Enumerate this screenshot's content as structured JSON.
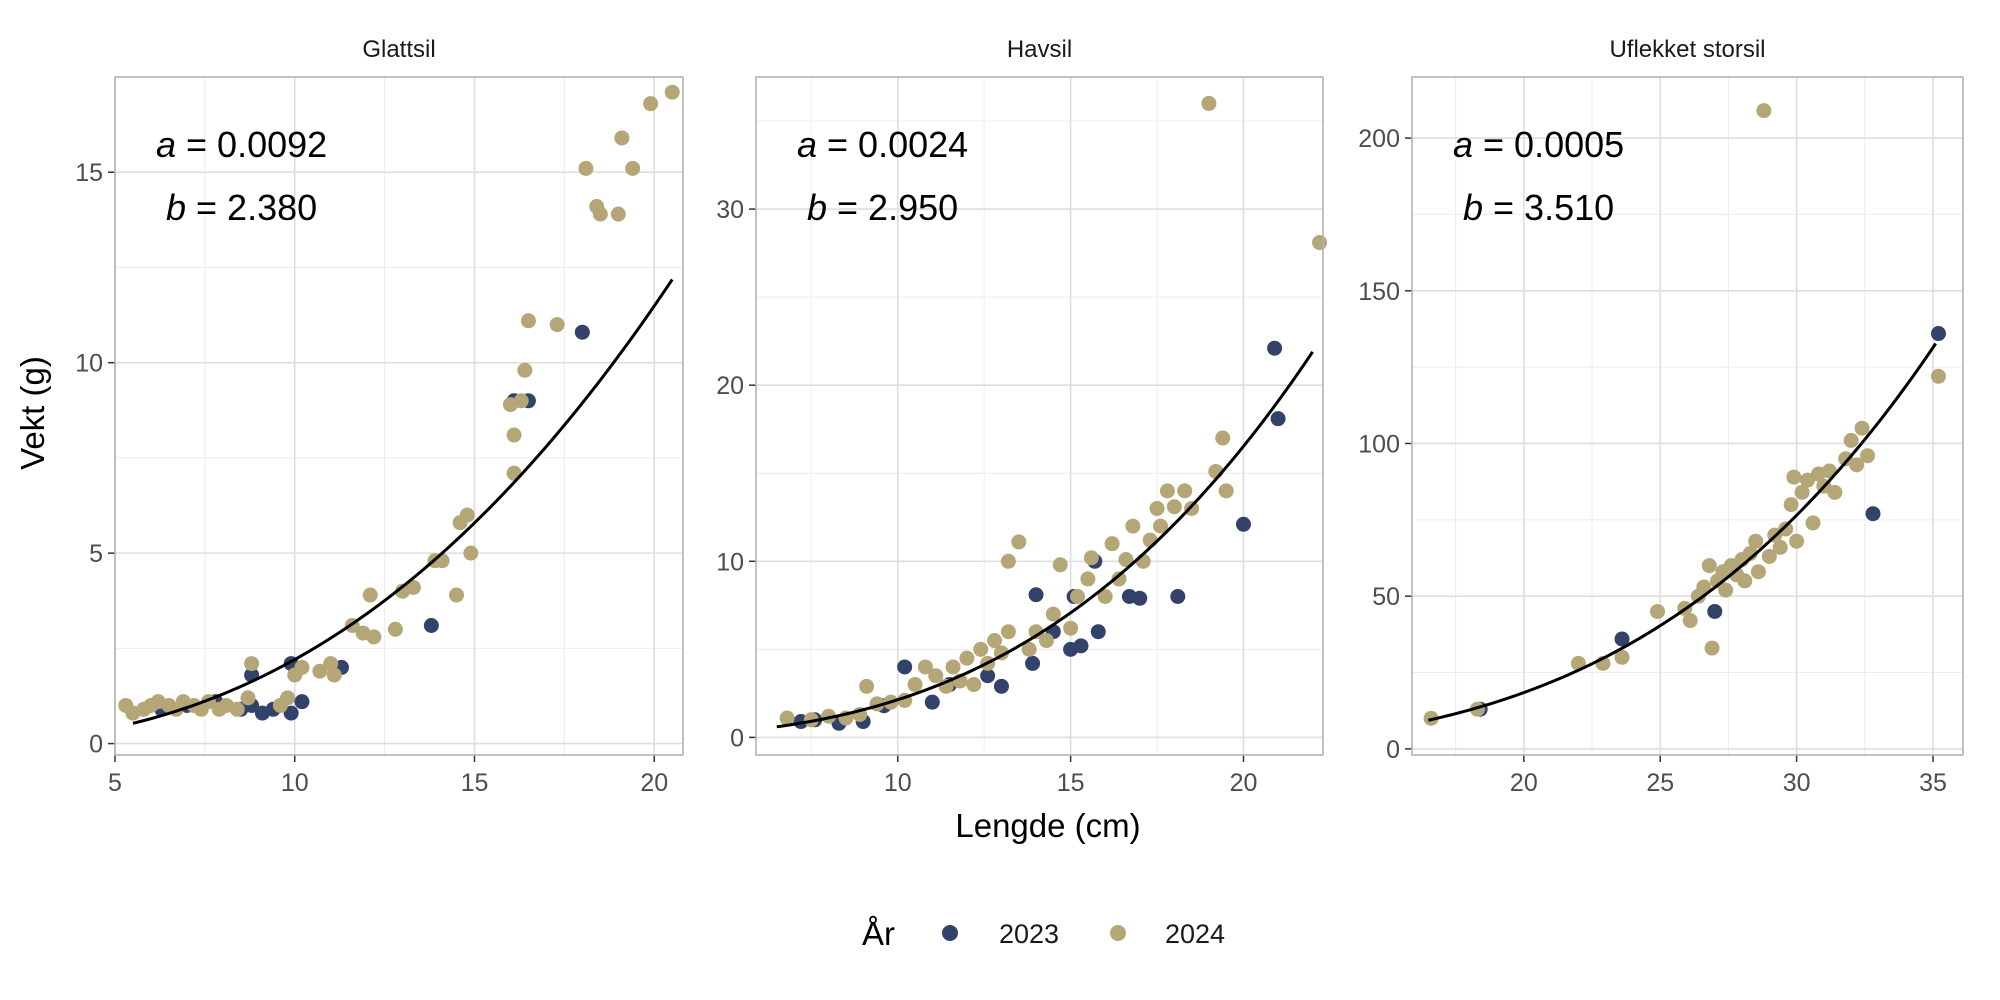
{
  "chart_data": {
    "type": "scatter",
    "xlabel": "Lengde (cm)",
    "ylabel": "Vekt (g)",
    "legend": {
      "title": "År",
      "position": "bottom"
    },
    "series_styles": [
      {
        "name": "2023",
        "color": "#33426b"
      },
      {
        "name": "2024",
        "color": "#b5a677"
      }
    ],
    "fit_color": "#000000",
    "panels": [
      {
        "title": "Glattsil",
        "xlim": [
          5,
          20.8
        ],
        "ylim": [
          -0.3,
          17.5
        ],
        "xticks": [
          5,
          10,
          15,
          20
        ],
        "yticks": [
          0,
          5,
          10,
          15
        ],
        "a": 0.0092,
        "b": 2.38,
        "a_label": "a",
        "a_text": "= 0.0092",
        "b_label": "b",
        "b_text": "= 2.380",
        "fit_range": [
          5.5,
          20.5
        ],
        "points_2023": [
          [
            6.3,
            0.9
          ],
          [
            7.0,
            1.0
          ],
          [
            7.8,
            1.1
          ],
          [
            8.5,
            0.9
          ],
          [
            8.8,
            1.0
          ],
          [
            8.8,
            1.8
          ],
          [
            9.1,
            0.8
          ],
          [
            9.4,
            0.9
          ],
          [
            9.9,
            0.8
          ],
          [
            9.9,
            2.1
          ],
          [
            10.2,
            1.1
          ],
          [
            11.3,
            2.0
          ],
          [
            13.8,
            3.1
          ],
          [
            16.1,
            9.0
          ],
          [
            16.5,
            9.0
          ],
          [
            18.0,
            10.8
          ]
        ],
        "points_2024": [
          [
            5.3,
            1.0
          ],
          [
            5.5,
            0.8
          ],
          [
            5.8,
            0.9
          ],
          [
            6.0,
            1.0
          ],
          [
            6.2,
            1.1
          ],
          [
            6.5,
            1.0
          ],
          [
            6.7,
            0.9
          ],
          [
            6.9,
            1.1
          ],
          [
            7.2,
            1.0
          ],
          [
            7.4,
            0.9
          ],
          [
            7.6,
            1.1
          ],
          [
            7.9,
            0.9
          ],
          [
            8.1,
            1.0
          ],
          [
            8.4,
            0.9
          ],
          [
            8.7,
            1.2
          ],
          [
            8.8,
            2.1
          ],
          [
            9.6,
            1.0
          ],
          [
            9.8,
            1.2
          ],
          [
            10.0,
            1.8
          ],
          [
            10.2,
            2.0
          ],
          [
            10.7,
            1.9
          ],
          [
            11.0,
            2.1
          ],
          [
            11.1,
            1.8
          ],
          [
            11.6,
            3.1
          ],
          [
            11.9,
            2.9
          ],
          [
            12.1,
            3.9
          ],
          [
            12.2,
            2.8
          ],
          [
            12.8,
            3.0
          ],
          [
            13.0,
            4.0
          ],
          [
            13.3,
            4.1
          ],
          [
            13.9,
            4.8
          ],
          [
            14.1,
            4.8
          ],
          [
            14.5,
            3.9
          ],
          [
            14.6,
            5.8
          ],
          [
            14.8,
            6.0
          ],
          [
            14.9,
            5.0
          ],
          [
            16.0,
            8.9
          ],
          [
            16.1,
            8.1
          ],
          [
            16.1,
            7.1
          ],
          [
            16.3,
            9.0
          ],
          [
            16.4,
            9.8
          ],
          [
            16.5,
            11.1
          ],
          [
            17.3,
            11.0
          ],
          [
            18.1,
            15.1
          ],
          [
            18.4,
            14.1
          ],
          [
            18.5,
            13.9
          ],
          [
            19.0,
            13.9
          ],
          [
            19.1,
            15.9
          ],
          [
            19.4,
            15.1
          ],
          [
            19.9,
            16.8
          ],
          [
            20.5,
            17.1
          ]
        ]
      },
      {
        "title": "Havsil",
        "xlim": [
          5.9,
          22.3
        ],
        "ylim": [
          -1,
          37.5
        ],
        "xticks": [
          10,
          15,
          20
        ],
        "yticks": [
          0,
          10,
          20,
          30
        ],
        "a": 0.0024,
        "b": 2.95,
        "a_label": "a",
        "a_text": "= 0.0024",
        "b_label": "b",
        "b_text": "= 2.950",
        "fit_range": [
          6.5,
          22.0
        ],
        "points_2023": [
          [
            7.2,
            0.9
          ],
          [
            7.6,
            1.0
          ],
          [
            8.3,
            0.8
          ],
          [
            9.0,
            0.9
          ],
          [
            9.6,
            1.8
          ],
          [
            10.2,
            4.0
          ],
          [
            11.0,
            2.0
          ],
          [
            11.5,
            3.0
          ],
          [
            12.6,
            3.5
          ],
          [
            13.0,
            2.9
          ],
          [
            13.9,
            4.2
          ],
          [
            14.0,
            8.1
          ],
          [
            14.5,
            6.0
          ],
          [
            15.0,
            5.0
          ],
          [
            15.1,
            8.0
          ],
          [
            15.3,
            5.2
          ],
          [
            15.7,
            10.0
          ],
          [
            15.8,
            6.0
          ],
          [
            16.7,
            8.0
          ],
          [
            17.0,
            7.9
          ],
          [
            18.1,
            8.0
          ],
          [
            20.0,
            12.1
          ],
          [
            20.9,
            22.1
          ],
          [
            21.0,
            18.1
          ]
        ],
        "points_2024": [
          [
            6.8,
            1.1
          ],
          [
            7.5,
            1.0
          ],
          [
            8.0,
            1.2
          ],
          [
            8.5,
            1.1
          ],
          [
            8.9,
            1.3
          ],
          [
            9.1,
            2.9
          ],
          [
            9.4,
            1.9
          ],
          [
            9.8,
            2.0
          ],
          [
            10.2,
            2.1
          ],
          [
            10.5,
            3.0
          ],
          [
            10.8,
            4.0
          ],
          [
            11.1,
            3.5
          ],
          [
            11.4,
            2.9
          ],
          [
            11.6,
            4.0
          ],
          [
            11.8,
            3.2
          ],
          [
            12.0,
            4.5
          ],
          [
            12.2,
            3.0
          ],
          [
            12.4,
            5.0
          ],
          [
            12.6,
            4.2
          ],
          [
            12.8,
            5.5
          ],
          [
            13.0,
            4.8
          ],
          [
            13.2,
            6.0
          ],
          [
            13.2,
            10.0
          ],
          [
            13.5,
            11.1
          ],
          [
            13.8,
            5.0
          ],
          [
            14.0,
            6.0
          ],
          [
            14.3,
            5.5
          ],
          [
            14.5,
            7.0
          ],
          [
            14.7,
            9.8
          ],
          [
            15.0,
            6.2
          ],
          [
            15.2,
            8.0
          ],
          [
            15.5,
            9.0
          ],
          [
            15.6,
            10.2
          ],
          [
            16.0,
            8.0
          ],
          [
            16.2,
            11.0
          ],
          [
            16.4,
            9.0
          ],
          [
            16.6,
            10.1
          ],
          [
            16.8,
            12.0
          ],
          [
            17.1,
            10.0
          ],
          [
            17.3,
            11.2
          ],
          [
            17.5,
            13.0
          ],
          [
            17.6,
            12.0
          ],
          [
            17.8,
            14.0
          ],
          [
            18.0,
            13.1
          ],
          [
            18.3,
            14.0
          ],
          [
            18.5,
            13.0
          ],
          [
            19.2,
            15.1
          ],
          [
            19.4,
            17.0
          ],
          [
            19.5,
            14.0
          ],
          [
            19.0,
            36.0
          ],
          [
            22.2,
            28.1
          ]
        ]
      },
      {
        "title": "Uflekket storsil",
        "xlim": [
          15.9,
          36.1
        ],
        "ylim": [
          -2,
          220
        ],
        "xticks": [
          20,
          25,
          30,
          35
        ],
        "yticks": [
          0,
          50,
          100,
          150,
          200
        ],
        "a": 0.0005,
        "b": 3.51,
        "a_label": "a",
        "a_text": "= 0.0005",
        "b_label": "b",
        "b_text": "= 3.510",
        "fit_range": [
          16.5,
          35.1
        ],
        "points_2023": [
          [
            18.4,
            13
          ],
          [
            23.6,
            36
          ],
          [
            27.0,
            45
          ],
          [
            32.8,
            77
          ],
          [
            35.2,
            136
          ]
        ],
        "points_2024": [
          [
            16.6,
            10
          ],
          [
            18.3,
            13
          ],
          [
            22.0,
            28
          ],
          [
            22.9,
            28
          ],
          [
            23.6,
            30
          ],
          [
            24.9,
            45
          ],
          [
            25.9,
            46
          ],
          [
            26.1,
            42
          ],
          [
            26.4,
            50
          ],
          [
            26.6,
            53
          ],
          [
            26.8,
            60
          ],
          [
            26.9,
            33
          ],
          [
            27.1,
            55
          ],
          [
            27.3,
            58
          ],
          [
            27.4,
            52
          ],
          [
            27.6,
            60
          ],
          [
            27.8,
            57
          ],
          [
            28.0,
            62
          ],
          [
            28.1,
            55
          ],
          [
            28.3,
            64
          ],
          [
            28.5,
            68
          ],
          [
            28.6,
            58
          ],
          [
            28.8,
            209
          ],
          [
            29.0,
            63
          ],
          [
            29.2,
            70
          ],
          [
            29.4,
            66
          ],
          [
            29.6,
            72
          ],
          [
            29.8,
            80
          ],
          [
            29.9,
            89
          ],
          [
            30.0,
            68
          ],
          [
            30.2,
            84
          ],
          [
            30.4,
            88
          ],
          [
            30.6,
            74
          ],
          [
            30.8,
            90
          ],
          [
            31.0,
            86
          ],
          [
            31.2,
            91
          ],
          [
            31.4,
            84
          ],
          [
            31.8,
            95
          ],
          [
            32.0,
            101
          ],
          [
            32.2,
            93
          ],
          [
            32.4,
            105
          ],
          [
            32.6,
            96
          ],
          [
            35.2,
            122
          ]
        ]
      }
    ]
  }
}
